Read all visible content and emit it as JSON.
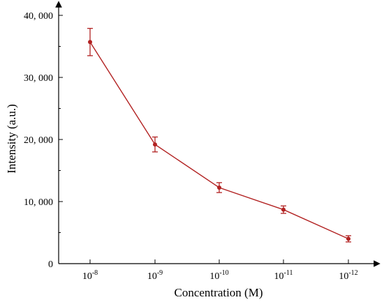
{
  "chart_data": {
    "type": "line",
    "xlabel": "Concentration (M)",
    "ylabel": "Intensity (a.u.)",
    "categories": [
      {
        "base": "10",
        "exp": "-8"
      },
      {
        "base": "10",
        "exp": "-9"
      },
      {
        "base": "10",
        "exp": "-10"
      },
      {
        "base": "10",
        "exp": "-11"
      },
      {
        "base": "10",
        "exp": "-12"
      }
    ],
    "series": [
      {
        "values": [
          35700,
          19200,
          12250,
          8700,
          4000
        ],
        "errors": [
          2200,
          1200,
          800,
          600,
          500
        ],
        "color": "#b22222"
      }
    ],
    "ylim": [
      0,
      40000
    ],
    "yticks": [
      0,
      10000,
      20000,
      30000,
      40000
    ],
    "ytick_labels": [
      "0",
      "10, 000",
      "20, 000",
      "30, 000",
      "40, 000"
    ],
    "grid": false,
    "legend": "none"
  }
}
